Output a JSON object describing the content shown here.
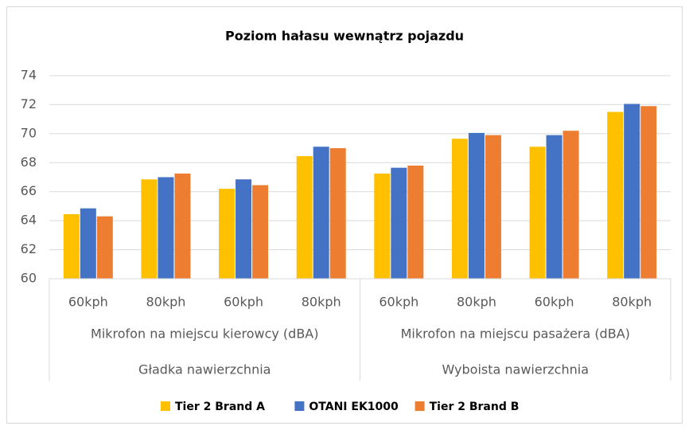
{
  "chart_data": {
    "type": "bar",
    "title": "Poziom hałasu wewnątrz pojazdu",
    "categories": [
      "60kph",
      "80kph",
      "60kph",
      "80kph",
      "60kph",
      "80kph",
      "60kph",
      "80kph"
    ],
    "group_levels": [
      [
        "Mikrofon na miejscu kierowcy (dBA)",
        "Mikrofon na miejscu pasażera (dBA)"
      ],
      [
        "Gładka nawierzchnia",
        "Wyboista nawierzchnia"
      ]
    ],
    "series": [
      {
        "name": "Tier 2 Brand A",
        "color": "#FFC000",
        "values": [
          64.45,
          66.85,
          66.2,
          68.45,
          67.25,
          69.65,
          69.1,
          71.5
        ]
      },
      {
        "name": "OTANI EK1000",
        "color": "#4472C4",
        "values": [
          64.85,
          67.0,
          66.85,
          69.1,
          67.65,
          70.05,
          69.9,
          72.05
        ]
      },
      {
        "name": "Tier 2 Brand B",
        "color": "#ED7D31",
        "values": [
          64.3,
          67.25,
          66.45,
          69.0,
          67.8,
          69.9,
          70.2,
          71.9
        ]
      }
    ],
    "ylim": [
      60,
      74
    ],
    "yticks": [
      60,
      62,
      64,
      66,
      68,
      70,
      72,
      74
    ],
    "grid": true,
    "legend": "bottom"
  }
}
